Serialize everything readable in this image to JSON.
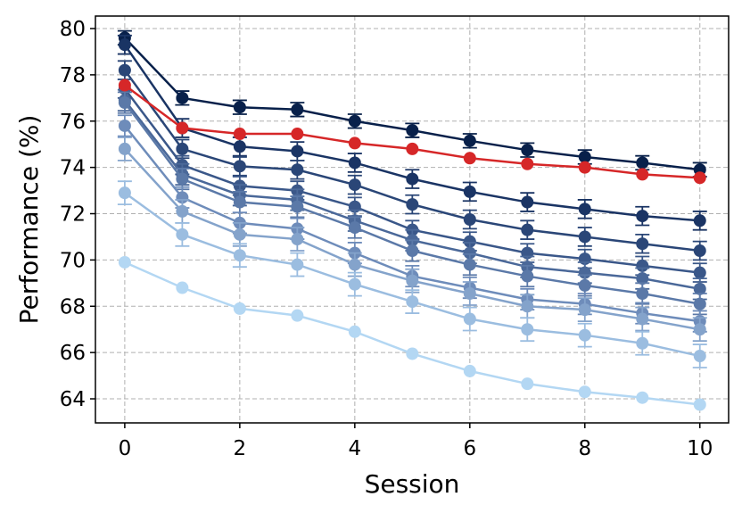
{
  "chart_data": {
    "type": "line",
    "x": [
      0,
      1,
      2,
      3,
      4,
      5,
      6,
      7,
      8,
      9,
      10
    ],
    "xlabel": "Session",
    "ylabel": "Performance (%)",
    "xlim": [
      -0.51,
      10.5
    ],
    "ylim": [
      62.96,
      80.54
    ],
    "xticks": [
      0,
      2,
      4,
      6,
      8,
      10
    ],
    "yticks": [
      64,
      66,
      68,
      70,
      72,
      74,
      76,
      78,
      80
    ],
    "grid": true,
    "series": [
      {
        "color": "#08204a",
        "error": 0.3,
        "values": [
          79.6,
          77.0,
          76.6,
          76.5,
          76.0,
          75.6,
          75.15,
          74.75,
          74.45,
          74.2,
          73.9
        ]
      },
      {
        "color": "#1a3464",
        "error": 0.4,
        "values": [
          79.3,
          75.7,
          74.9,
          74.7,
          74.2,
          73.5,
          72.95,
          72.5,
          72.2,
          71.9,
          71.7
        ]
      },
      {
        "color": "#2a4677",
        "error": 0.4,
        "values": [
          78.2,
          74.8,
          74.05,
          73.9,
          73.25,
          72.4,
          71.75,
          71.3,
          71.0,
          70.7,
          70.4
        ]
      },
      {
        "color": "#3a5789",
        "error": 0.4,
        "values": [
          77.4,
          74.1,
          73.2,
          73.0,
          72.3,
          71.3,
          70.8,
          70.3,
          70.05,
          69.75,
          69.45
        ]
      },
      {
        "color": "#4a6899",
        "error": 0.45,
        "values": [
          76.9,
          73.7,
          72.8,
          72.6,
          71.7,
          70.85,
          70.3,
          69.7,
          69.45,
          69.2,
          68.75
        ]
      },
      {
        "color": "#5b79a8",
        "error": 0.45,
        "values": [
          76.8,
          73.5,
          72.5,
          72.3,
          71.4,
          70.4,
          69.8,
          69.3,
          68.9,
          68.55,
          68.1
        ]
      },
      {
        "color": "#6e8cba",
        "error": 0.45,
        "values": [
          75.8,
          72.7,
          71.6,
          71.35,
          70.3,
          69.3,
          68.8,
          68.3,
          68.1,
          67.7,
          67.35
        ]
      },
      {
        "color": "#84a3cb",
        "error": 0.5,
        "values": [
          74.8,
          72.1,
          71.1,
          70.9,
          69.8,
          69.1,
          68.55,
          68.0,
          67.85,
          67.45,
          67.0
        ]
      },
      {
        "color": "#9bbde0",
        "error": 0.5,
        "values": [
          72.9,
          71.1,
          70.2,
          69.8,
          68.95,
          68.2,
          67.45,
          67.0,
          66.75,
          66.4,
          65.85
        ]
      },
      {
        "color": "#b3d7f3",
        "values": [
          69.9,
          68.8,
          67.9,
          67.6,
          66.9,
          65.95,
          65.2,
          64.65,
          64.3,
          64.05,
          63.75
        ]
      },
      {
        "color": "#d62728",
        "values": [
          77.55,
          75.7,
          75.45,
          75.45,
          75.05,
          74.8,
          74.4,
          74.15,
          74.0,
          73.7,
          73.55
        ]
      }
    ]
  }
}
